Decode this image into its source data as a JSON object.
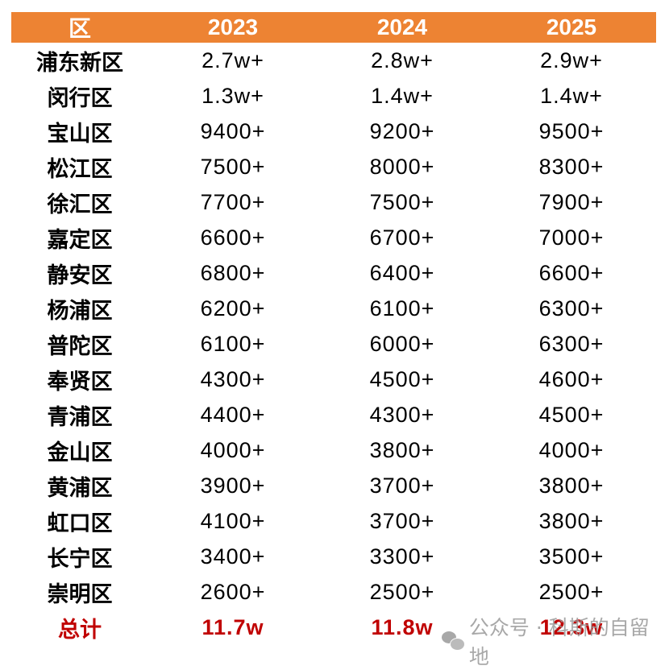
{
  "table": {
    "headers": [
      "区",
      "2023",
      "2024",
      "2025"
    ],
    "header_color": "#ED8333",
    "rows": [
      {
        "district": "浦东新区",
        "y2023": "2.7w+",
        "y2024": "2.8w+",
        "y2025": "2.9w+"
      },
      {
        "district": "闵行区",
        "y2023": "1.3w+",
        "y2024": "1.4w+",
        "y2025": "1.4w+"
      },
      {
        "district": "宝山区",
        "y2023": "9400+",
        "y2024": "9200+",
        "y2025": "9500+"
      },
      {
        "district": "松江区",
        "y2023": "7500+",
        "y2024": "8000+",
        "y2025": "8300+"
      },
      {
        "district": "徐汇区",
        "y2023": "7700+",
        "y2024": "7500+",
        "y2025": "7900+"
      },
      {
        "district": "嘉定区",
        "y2023": "6600+",
        "y2024": "6700+",
        "y2025": "7000+"
      },
      {
        "district": "静安区",
        "y2023": "6800+",
        "y2024": "6400+",
        "y2025": "6600+"
      },
      {
        "district": "杨浦区",
        "y2023": "6200+",
        "y2024": "6100+",
        "y2025": "6300+"
      },
      {
        "district": "普陀区",
        "y2023": "6100+",
        "y2024": "6000+",
        "y2025": "6300+"
      },
      {
        "district": "奉贤区",
        "y2023": "4300+",
        "y2024": "4500+",
        "y2025": "4600+"
      },
      {
        "district": "青浦区",
        "y2023": "4400+",
        "y2024": "4300+",
        "y2025": "4500+"
      },
      {
        "district": "金山区",
        "y2023": "4000+",
        "y2024": "3800+",
        "y2025": "4000+"
      },
      {
        "district": "黄浦区",
        "y2023": "3900+",
        "y2024": "3700+",
        "y2025": "3800+"
      },
      {
        "district": "虹口区",
        "y2023": "4100+",
        "y2024": "3700+",
        "y2025": "3800+"
      },
      {
        "district": "长宁区",
        "y2023": "3400+",
        "y2024": "3300+",
        "y2025": "3500+"
      },
      {
        "district": "崇明区",
        "y2023": "2600+",
        "y2024": "2500+",
        "y2025": "2500+"
      }
    ],
    "total": {
      "district": "总计",
      "y2023": "11.7w",
      "y2024": "11.8w",
      "y2025": "12.3w",
      "color": "#C00000"
    }
  },
  "watermark": {
    "text": "公众号 · 科斯的自留地",
    "icon": "wechat-icon"
  }
}
